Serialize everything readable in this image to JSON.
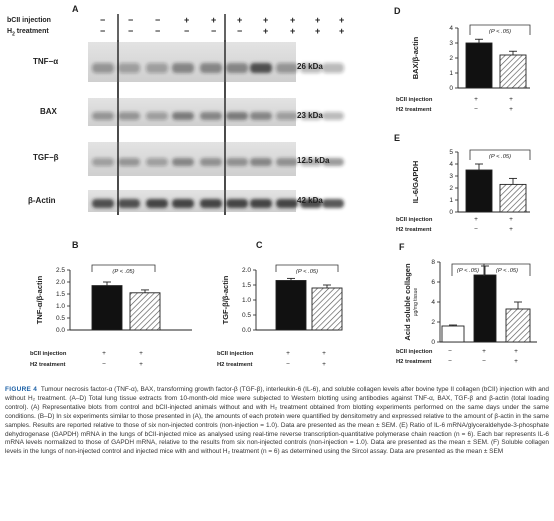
{
  "panel_a": {
    "letter": "A",
    "conditions": [
      {
        "label": "bCII injection",
        "values": [
          "−",
          "−",
          "−",
          "+",
          "+",
          "+",
          "+",
          "+",
          "+",
          "+"
        ]
      },
      {
        "label": "H2 treatment",
        "values": [
          "−",
          "−",
          "−",
          "−",
          "−",
          "−",
          "+",
          "+",
          "+",
          "+"
        ]
      }
    ],
    "blots": [
      {
        "name": "TNF−α",
        "kda": "26 kDa"
      },
      {
        "name": "BAX",
        "kda": "23 kDa"
      },
      {
        "name": "TGF−β",
        "kda": "12.5 kDa"
      },
      {
        "name": "β-Actin",
        "kda": "42 kDa"
      }
    ]
  },
  "chart_data": [
    {
      "panel": "B",
      "type": "bar",
      "ylabel": "TNF-α/β-actin",
      "categories": [
        "bCII injection +  H2 treatment −",
        "bCII injection +  H2 treatment +"
      ],
      "values": [
        1.85,
        1.55
      ],
      "errors": [
        0.15,
        0.12
      ],
      "ylim": [
        0,
        2.5
      ],
      "yticks": [
        "0.0",
        "0.5",
        "1.0",
        "1.5",
        "2.0",
        "2.5"
      ],
      "annotation": "(P < .05)"
    },
    {
      "panel": "C",
      "type": "bar",
      "ylabel": "TGF-β/β-actin",
      "categories": [
        "+ / −",
        "+ / +"
      ],
      "values": [
        1.65,
        1.4
      ],
      "errors": [
        0.07,
        0.1
      ],
      "ylim": [
        0,
        2.0
      ],
      "yticks": [
        "0.0",
        "0.5",
        "1.0",
        "1.5",
        "2.0"
      ],
      "annotation": "(P < .05)"
    },
    {
      "panel": "D",
      "type": "bar",
      "ylabel": "BAX/β-actin",
      "categories": [
        "+ / −",
        "+ / +"
      ],
      "values": [
        3.0,
        2.2
      ],
      "errors": [
        0.25,
        0.25
      ],
      "ylim": [
        0,
        4
      ],
      "yticks": [
        "0",
        "1",
        "2",
        "3",
        "4"
      ],
      "annotation": "(P < .05)"
    },
    {
      "panel": "E",
      "type": "bar",
      "ylabel": "IL-6/GAPDH",
      "categories": [
        "+ / −",
        "+ / +"
      ],
      "values": [
        3.5,
        2.3
      ],
      "errors": [
        0.5,
        0.5
      ],
      "ylim": [
        0,
        5
      ],
      "yticks": [
        "0",
        "1",
        "2",
        "3",
        "4",
        "5"
      ],
      "annotation": "(P < .05)"
    },
    {
      "panel": "F",
      "type": "bar",
      "ylabel": "Acid soluble collagen",
      "ylabel2": "μg/mg tissue",
      "categories": [
        "− / −",
        "+ / −",
        "+ / +"
      ],
      "values": [
        1.6,
        6.7,
        3.3
      ],
      "errors": [
        0.1,
        0.9,
        0.7
      ],
      "ylim": [
        0,
        8
      ],
      "yticks": [
        "0",
        "2",
        "4",
        "6",
        "8"
      ],
      "annotation_left": "(P < .05)",
      "annotation_right": "(P < .05)"
    }
  ],
  "axis_rows": {
    "row1": "bCII injection",
    "row2": "H2 treatment"
  },
  "caption": {
    "label": "FIGURE 4",
    "text": "Tumour necrosis factor-α (TNF-α), BAX, transforming growth factor-β (TGF-β), interleukin-6 (IL-6), and soluble collagen levels after bovine type II collagen (bCII) injection with and without H₂ treatment. (A–D) Total lung tissue extracts from 10-month-old mice were subjected to Western blotting using antibodies against TNF-α, BAX, TGF-β and β-actin (total loading control). (A) Representative blots from control and bCII-injected animals without and with H₂ treatment obtained from blotting experiments performed on the same days under the same conditions. (B–D) In six experiments similar to those presented in (A), the amounts of each protein were quantified by densitometry and expressed relative to the amount of β-actin in the same samples. Results are reported relative to those of six non-injected controls (non-injection = 1.0). Data are presented as the mean ± SEM. (E) Ratio of IL-6 mRNA/glyceraldehyde-3-phosphate dehydrogenase (GAPDH) mRNA in the lungs of bCII-injected mice as analysed using real-time reverse transcription-quantitative polymerase chain reaction (n = 6). Each bar represents IL-6 mRNA levels normalized to those of GAPDH mRNA, relative to the results from six non-injected controls (non-injection = 1.0). Data are presented as the mean ± SEM. (F) Soluble collagen levels in the lungs of non-injected control and injected mice with and without H₂ treatment (n = 6) as determined using the Sircol assay. Data are presented as the mean ± SEM"
  },
  "colors": {
    "bar_dark": "#111111",
    "bar_white": "#ffffff",
    "hatch": "#666666",
    "blot_bg": "#d8d8d8",
    "caption_label": "#1a5fa5"
  }
}
